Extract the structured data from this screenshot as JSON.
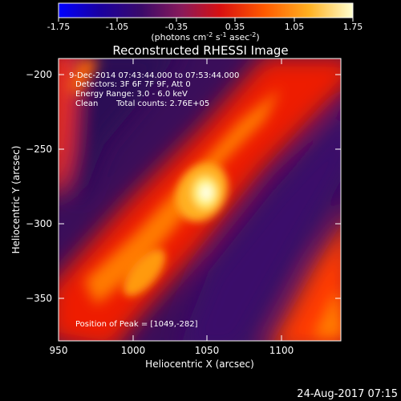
{
  "colorbar": {
    "ticks": [
      "-1.75",
      "-1.05",
      "-0.35",
      "0.35",
      "1.05",
      "1.75"
    ],
    "unit_label_main": "(photons cm",
    "unit_label_exp1": "-2",
    "unit_label_mid": " s",
    "unit_label_exp2": "-1",
    "unit_label_mid2": " asec",
    "unit_label_exp3": "-2",
    "unit_label_end": ")"
  },
  "overlay": {
    "time_range": "9-Dec-2014 07:43:44.000 to 07:53:44.000",
    "detectors": "Detectors: 3F 6F 7F 9F, Att 0",
    "energy_range": "Energy Range: 3.0 - 6.0 keV",
    "clean_label": "Clean",
    "total_counts": "Total counts: 2.76E+05",
    "peak_position": "Position of Peak = [1049,-282]"
  },
  "footer": {
    "date_stamp": "24-Aug-2017 07:15"
  },
  "chart_data": {
    "type": "heatmap",
    "title": "Reconstructed RHESSI Image",
    "xlabel": "Heliocentric X (arcsec)",
    "ylabel": "Heliocentric Y (arcsec)",
    "xlim": [
      950,
      1140
    ],
    "ylim": [
      -380,
      -190
    ],
    "x_ticks": [
      950,
      1000,
      1050,
      1100
    ],
    "y_ticks": [
      -200,
      -250,
      -300,
      -350
    ],
    "x_tick_labels": [
      "950",
      "1000",
      "1050",
      "1100"
    ],
    "y_tick_labels": [
      "−200",
      "−250",
      "−300",
      "−350"
    ],
    "color_scale": [
      -1.75,
      1.75
    ],
    "peak": {
      "x": 1049,
      "y": -282
    },
    "colormap": [
      "#0000ff",
      "#1a0070",
      "#2a0a5a",
      "#5a1a7a",
      "#b0102a",
      "#ff2a00",
      "#ff8800",
      "#ffd23a",
      "#ffffff"
    ]
  }
}
